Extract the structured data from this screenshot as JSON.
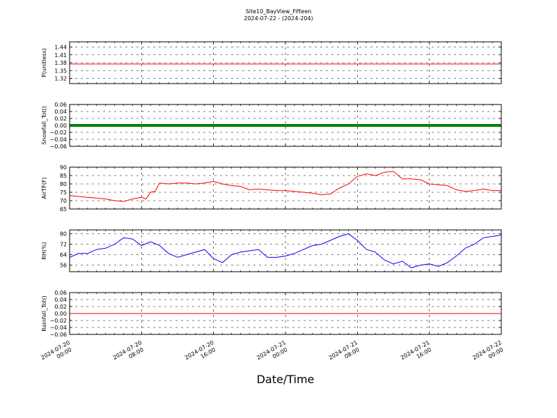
{
  "figure": {
    "title": "Site10_BayView_Fifteen",
    "subtitle": "2024-07-22 - (2024-204)",
    "xlabel": "Date/Time"
  },
  "chart_data": [
    {
      "type": "line",
      "ylabel": "P(unitless)",
      "ylim": [
        1.3,
        1.46
      ],
      "yticks": [
        "1.44",
        "1.41",
        "1.38",
        "1.35",
        "1.32"
      ],
      "ytick_values": [
        1.44,
        1.41,
        1.38,
        1.35,
        1.32
      ],
      "grid": true,
      "series": [
        {
          "color": "#ff0000",
          "x": [
            0,
            48
          ],
          "y": [
            1.375,
            1.375
          ]
        }
      ]
    },
    {
      "type": "line",
      "ylabel": "Snowfall_Tot()",
      "ylim": [
        -0.06,
        0.06
      ],
      "yticks": [
        "0.06",
        "0.04",
        "0.02",
        "0.00",
        "−0.02",
        "−0.04",
        "−0.06"
      ],
      "ytick_values": [
        0.06,
        0.04,
        0.02,
        0.0,
        -0.02,
        -0.04,
        -0.06
      ],
      "grid": true,
      "series": [
        {
          "color": "#008000",
          "x": [
            0,
            48
          ],
          "y": [
            0.0,
            0.0
          ],
          "marker": "dot"
        }
      ]
    },
    {
      "type": "line",
      "ylabel": "AirTF(F)",
      "ylim": [
        65,
        90
      ],
      "yticks": [
        "90",
        "85",
        "80",
        "75",
        "70",
        "65"
      ],
      "ytick_values": [
        90,
        85,
        80,
        75,
        70,
        65
      ],
      "grid": true,
      "series": [
        {
          "color": "#ff0000",
          "x": [
            0,
            1,
            2,
            3,
            4,
            5,
            6,
            7,
            8,
            8.5,
            9,
            9.5,
            10,
            11,
            12,
            13,
            14,
            15,
            16,
            17,
            18,
            19,
            20,
            21,
            22,
            23,
            24,
            25,
            26,
            27,
            28,
            29,
            30,
            31,
            32,
            33,
            34,
            35,
            36,
            37,
            38,
            39,
            40,
            41,
            42,
            43,
            44,
            45,
            46,
            47,
            48
          ],
          "y": [
            73,
            72.5,
            72,
            71.5,
            71,
            70,
            69.5,
            71,
            72,
            71,
            75,
            75.5,
            80.5,
            80,
            80.5,
            80.5,
            80,
            80.5,
            81.5,
            80,
            79,
            78.5,
            76.5,
            77,
            76.5,
            76,
            76,
            75.5,
            75,
            74.5,
            73.5,
            74,
            77.5,
            80,
            84.5,
            86,
            85,
            87,
            87.5,
            83,
            83,
            82.5,
            80,
            79.5,
            79,
            76.5,
            75.5,
            76,
            77,
            76,
            76
          ]
        }
      ]
    },
    {
      "type": "line",
      "ylabel": "RH(%)",
      "ylim": [
        51,
        83
      ],
      "yticks": [
        "80",
        "72",
        "64",
        "56"
      ],
      "ytick_values": [
        80,
        72,
        64,
        56
      ],
      "grid": true,
      "series": [
        {
          "color": "#0000ff",
          "x": [
            0,
            1,
            2,
            3,
            4,
            5,
            6,
            7,
            8,
            9,
            10,
            11,
            12,
            13,
            14,
            15,
            16,
            17,
            18,
            19,
            20,
            21,
            22,
            23,
            24,
            25,
            26,
            27,
            28,
            29,
            30,
            31,
            32,
            33,
            34,
            35,
            36,
            37,
            38,
            39,
            40,
            41,
            42,
            43,
            44,
            45,
            46,
            47,
            48
          ],
          "y": [
            62,
            65,
            65,
            68,
            69,
            72,
            77,
            76,
            71,
            74,
            71,
            65,
            62,
            64,
            66,
            68,
            61,
            58,
            64,
            66,
            67,
            68,
            62,
            62,
            63,
            65,
            68,
            71,
            72,
            75,
            78,
            80,
            75,
            68,
            66,
            60,
            57,
            59,
            54,
            56,
            57,
            55,
            58,
            63,
            69,
            72,
            77,
            78,
            79
          ]
        }
      ]
    },
    {
      "type": "line",
      "ylabel": "Rainfall_Tot()",
      "ylim": [
        -0.06,
        0.06
      ],
      "yticks": [
        "0.06",
        "0.04",
        "0.02",
        "0.00",
        "−0.02",
        "−0.04",
        "−0.06"
      ],
      "ytick_values": [
        0.06,
        0.04,
        0.02,
        0.0,
        -0.02,
        -0.04,
        -0.06
      ],
      "grid": true,
      "series": [
        {
          "color": "#ff0000",
          "x": [
            0,
            48
          ],
          "y": [
            0.0,
            0.0
          ]
        }
      ]
    }
  ],
  "x_axis": {
    "range_hours": [
      0,
      48
    ],
    "tick_hours": [
      0,
      8,
      16,
      24,
      32,
      40,
      48
    ],
    "tick_labels": [
      [
        "2024-07-20",
        "00:00"
      ],
      [
        "2024-07-20",
        "08:00"
      ],
      [
        "2024-07-20",
        "16:00"
      ],
      [
        "2024-07-21",
        "00:00"
      ],
      [
        "2024-07-21",
        "08:00"
      ],
      [
        "2024-07-21",
        "16:00"
      ],
      [
        "2024-07-22",
        "00:00"
      ]
    ]
  }
}
